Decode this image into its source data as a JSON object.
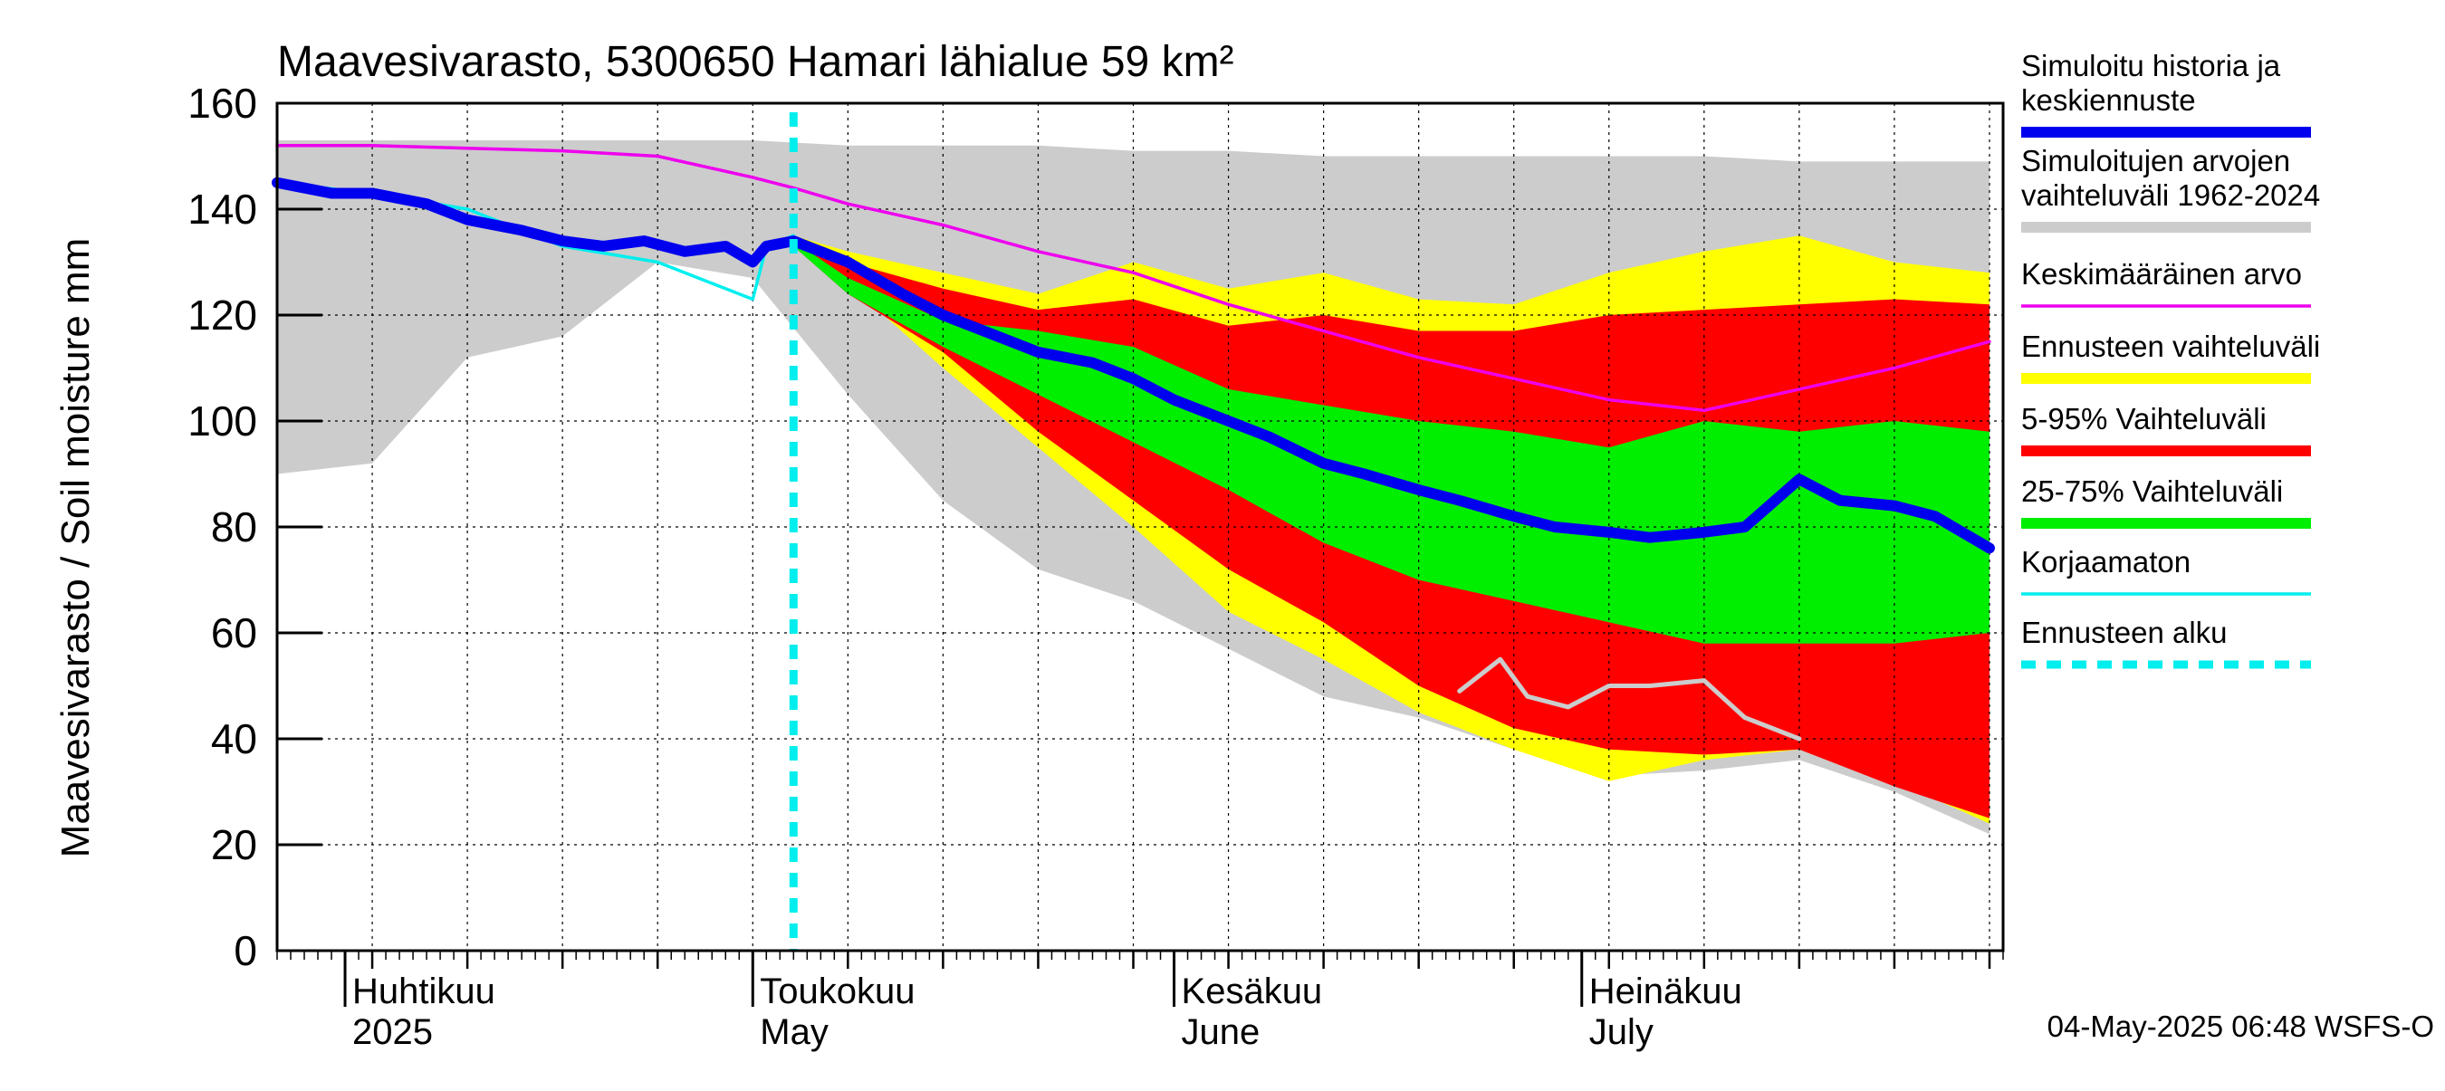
{
  "chart_data": {
    "type": "area",
    "title": "Maavesivarasto, 5300650 Hamari lähialue 59 km²",
    "ylabel": "Maavesivarasto / Soil moisture   mm",
    "ylim": [
      0,
      160
    ],
    "xlim": [
      "2025-03-27",
      "2025-08-01"
    ],
    "y_ticks": [
      0,
      20,
      40,
      60,
      80,
      100,
      120,
      140,
      160
    ],
    "grid": true,
    "legend_position": "right",
    "forecast_start": "2025-05-04",
    "timestamp": "04-May-2025 06:48 WSFS-O",
    "month_labels": [
      {
        "date": "2025-04-01",
        "fi": "Huhtikuu",
        "en": "2025"
      },
      {
        "date": "2025-05-01",
        "fi": "Toukokuu",
        "en": "May"
      },
      {
        "date": "2025-06-01",
        "fi": "Kesäkuu",
        "en": "June"
      },
      {
        "date": "2025-07-01",
        "fi": "Heinäkuu",
        "en": "July"
      }
    ],
    "legend": [
      {
        "label": "Simuloitu historia ja keskiennuste",
        "color": "#0000ee",
        "style": "thick"
      },
      {
        "label": "Simuloitujen arvojen vaihteluväli 1962-2024",
        "color": "#cccccc",
        "style": "thick"
      },
      {
        "label": "Keskimääräinen arvo",
        "color": "#ee00ee",
        "style": "thin"
      },
      {
        "label": "Ennusteen vaihteluväli",
        "color": "#ffff00",
        "style": "thick"
      },
      {
        "label": "5-95% Vaihteluväli",
        "color": "#ff0000",
        "style": "thick"
      },
      {
        "label": "25-75% Vaihteluväli",
        "color": "#00ee00",
        "style": "thick"
      },
      {
        "label": "Korjaamaton",
        "color": "#00eeee",
        "style": "thin"
      },
      {
        "label": "Ennusteen alku",
        "color": "#00eeee",
        "style": "dashed"
      }
    ],
    "x_dates": [
      "2025-03-27",
      "2025-04-03",
      "2025-04-10",
      "2025-04-17",
      "2025-04-24",
      "2025-05-01",
      "2025-05-04",
      "2025-05-08",
      "2025-05-15",
      "2025-05-22",
      "2025-05-29",
      "2025-06-05",
      "2025-06-12",
      "2025-06-19",
      "2025-06-26",
      "2025-07-03",
      "2025-07-10",
      "2025-07-17",
      "2025-07-24",
      "2025-07-31"
    ],
    "series": [
      {
        "name": "Simuloitujen arvojen vaihteluväli 1962-2024",
        "kind": "band",
        "color": "#cccccc",
        "x": [
          "2025-03-27",
          "2025-04-03",
          "2025-04-10",
          "2025-04-17",
          "2025-04-24",
          "2025-05-01",
          "2025-05-08",
          "2025-05-15",
          "2025-05-22",
          "2025-05-29",
          "2025-06-05",
          "2025-06-12",
          "2025-06-19",
          "2025-06-26",
          "2025-07-03",
          "2025-07-10",
          "2025-07-17",
          "2025-07-24",
          "2025-07-31"
        ],
        "upper": [
          153,
          153,
          153,
          153,
          153,
          153,
          152,
          152,
          152,
          151,
          151,
          150,
          150,
          150,
          150,
          150,
          149,
          149,
          149
        ],
        "lower": [
          90,
          92,
          112,
          116,
          130,
          127,
          105,
          85,
          72,
          66,
          57,
          48,
          44,
          38,
          33,
          34,
          36,
          30,
          22
        ]
      },
      {
        "name": "Ennusteen vaihteluväli",
        "kind": "band",
        "color": "#ffff00",
        "x": [
          "2025-05-04",
          "2025-05-08",
          "2025-05-15",
          "2025-05-22",
          "2025-05-29",
          "2025-06-05",
          "2025-06-12",
          "2025-06-19",
          "2025-06-26",
          "2025-07-03",
          "2025-07-10",
          "2025-07-17",
          "2025-07-24",
          "2025-07-31"
        ],
        "upper": [
          135,
          132,
          128,
          124,
          130,
          125,
          128,
          123,
          122,
          128,
          132,
          135,
          130,
          128
        ],
        "lower": [
          134,
          126,
          110,
          95,
          80,
          64,
          55,
          45,
          38,
          32,
          36,
          38,
          32,
          24
        ]
      },
      {
        "name": "5-95% Vaihteluväli",
        "kind": "band",
        "color": "#ff0000",
        "x": [
          "2025-05-04",
          "2025-05-08",
          "2025-05-15",
          "2025-05-22",
          "2025-05-29",
          "2025-06-05",
          "2025-06-12",
          "2025-06-19",
          "2025-06-26",
          "2025-07-03",
          "2025-07-10",
          "2025-07-17",
          "2025-07-24",
          "2025-07-31"
        ],
        "upper": [
          135,
          130,
          125,
          121,
          123,
          118,
          120,
          117,
          117,
          120,
          121,
          122,
          123,
          122
        ],
        "lower": [
          133,
          124,
          113,
          98,
          85,
          72,
          62,
          50,
          42,
          38,
          37,
          38,
          31,
          25
        ]
      },
      {
        "name": "25-75% Vaihteluväli",
        "kind": "band",
        "color": "#00ee00",
        "x": [
          "2025-05-04",
          "2025-05-08",
          "2025-05-15",
          "2025-05-22",
          "2025-05-29",
          "2025-06-05",
          "2025-06-12",
          "2025-06-19",
          "2025-06-26",
          "2025-07-03",
          "2025-07-10",
          "2025-07-17",
          "2025-07-24",
          "2025-07-31"
        ],
        "upper": [
          134,
          127,
          119,
          117,
          114,
          106,
          103,
          100,
          98,
          95,
          100,
          98,
          100,
          98
        ],
        "lower": [
          133,
          124,
          114,
          105,
          96,
          87,
          77,
          70,
          66,
          62,
          58,
          58,
          58,
          60
        ]
      },
      {
        "name": "Keskimääräinen arvo",
        "kind": "line",
        "color": "#ee00ee",
        "x": [
          "2025-03-27",
          "2025-04-03",
          "2025-04-10",
          "2025-04-17",
          "2025-04-24",
          "2025-05-01",
          "2025-05-04",
          "2025-05-08",
          "2025-05-15",
          "2025-05-22",
          "2025-05-29",
          "2025-06-05",
          "2025-06-12",
          "2025-06-19",
          "2025-06-26",
          "2025-07-03",
          "2025-07-10",
          "2025-07-17",
          "2025-07-24",
          "2025-07-31"
        ],
        "values": [
          152,
          152,
          151.5,
          151,
          150,
          146,
          144,
          141,
          137,
          132,
          128,
          122,
          117,
          112,
          108,
          104,
          102,
          106,
          110,
          115
        ]
      },
      {
        "name": "Korjaamaton",
        "kind": "line",
        "color": "#00eeee",
        "x": [
          "2025-03-27",
          "2025-04-03",
          "2025-04-10",
          "2025-04-17",
          "2025-04-24",
          "2025-05-01",
          "2025-05-02",
          "2025-05-04"
        ],
        "values": [
          145,
          143,
          140,
          133,
          130,
          123,
          133,
          135
        ]
      },
      {
        "name": "Simuloitu historia ja keskiennuste",
        "kind": "line",
        "color": "#0000ee",
        "x": [
          "2025-03-27",
          "2025-03-31",
          "2025-04-03",
          "2025-04-07",
          "2025-04-10",
          "2025-04-14",
          "2025-04-17",
          "2025-04-20",
          "2025-04-23",
          "2025-04-26",
          "2025-04-29",
          "2025-05-01",
          "2025-05-02",
          "2025-05-04",
          "2025-05-08",
          "2025-05-12",
          "2025-05-15",
          "2025-05-19",
          "2025-05-22",
          "2025-05-26",
          "2025-05-29",
          "2025-06-01",
          "2025-06-05",
          "2025-06-08",
          "2025-06-12",
          "2025-06-15",
          "2025-06-19",
          "2025-06-22",
          "2025-06-26",
          "2025-06-29",
          "2025-07-03",
          "2025-07-06",
          "2025-07-10",
          "2025-07-13",
          "2025-07-17",
          "2025-07-20",
          "2025-07-24",
          "2025-07-27",
          "2025-07-31"
        ],
        "values": [
          145,
          143,
          143,
          141,
          138,
          136,
          134,
          133,
          134,
          132,
          133,
          130,
          133,
          134,
          130,
          124,
          120,
          116,
          113,
          111,
          108,
          104,
          100,
          97,
          92,
          90,
          87,
          85,
          82,
          80,
          79,
          78,
          79,
          80,
          89,
          85,
          84,
          82,
          76
        ]
      },
      {
        "name": "",
        "kind": "line",
        "color": "#cccccc",
        "x": [
          "2025-06-22",
          "2025-06-25",
          "2025-06-27",
          "2025-06-30",
          "2025-07-03",
          "2025-07-06",
          "2025-07-10",
          "2025-07-13",
          "2025-07-17"
        ],
        "values": [
          49,
          55,
          48,
          46,
          50,
          50,
          51,
          44,
          40
        ]
      }
    ]
  }
}
